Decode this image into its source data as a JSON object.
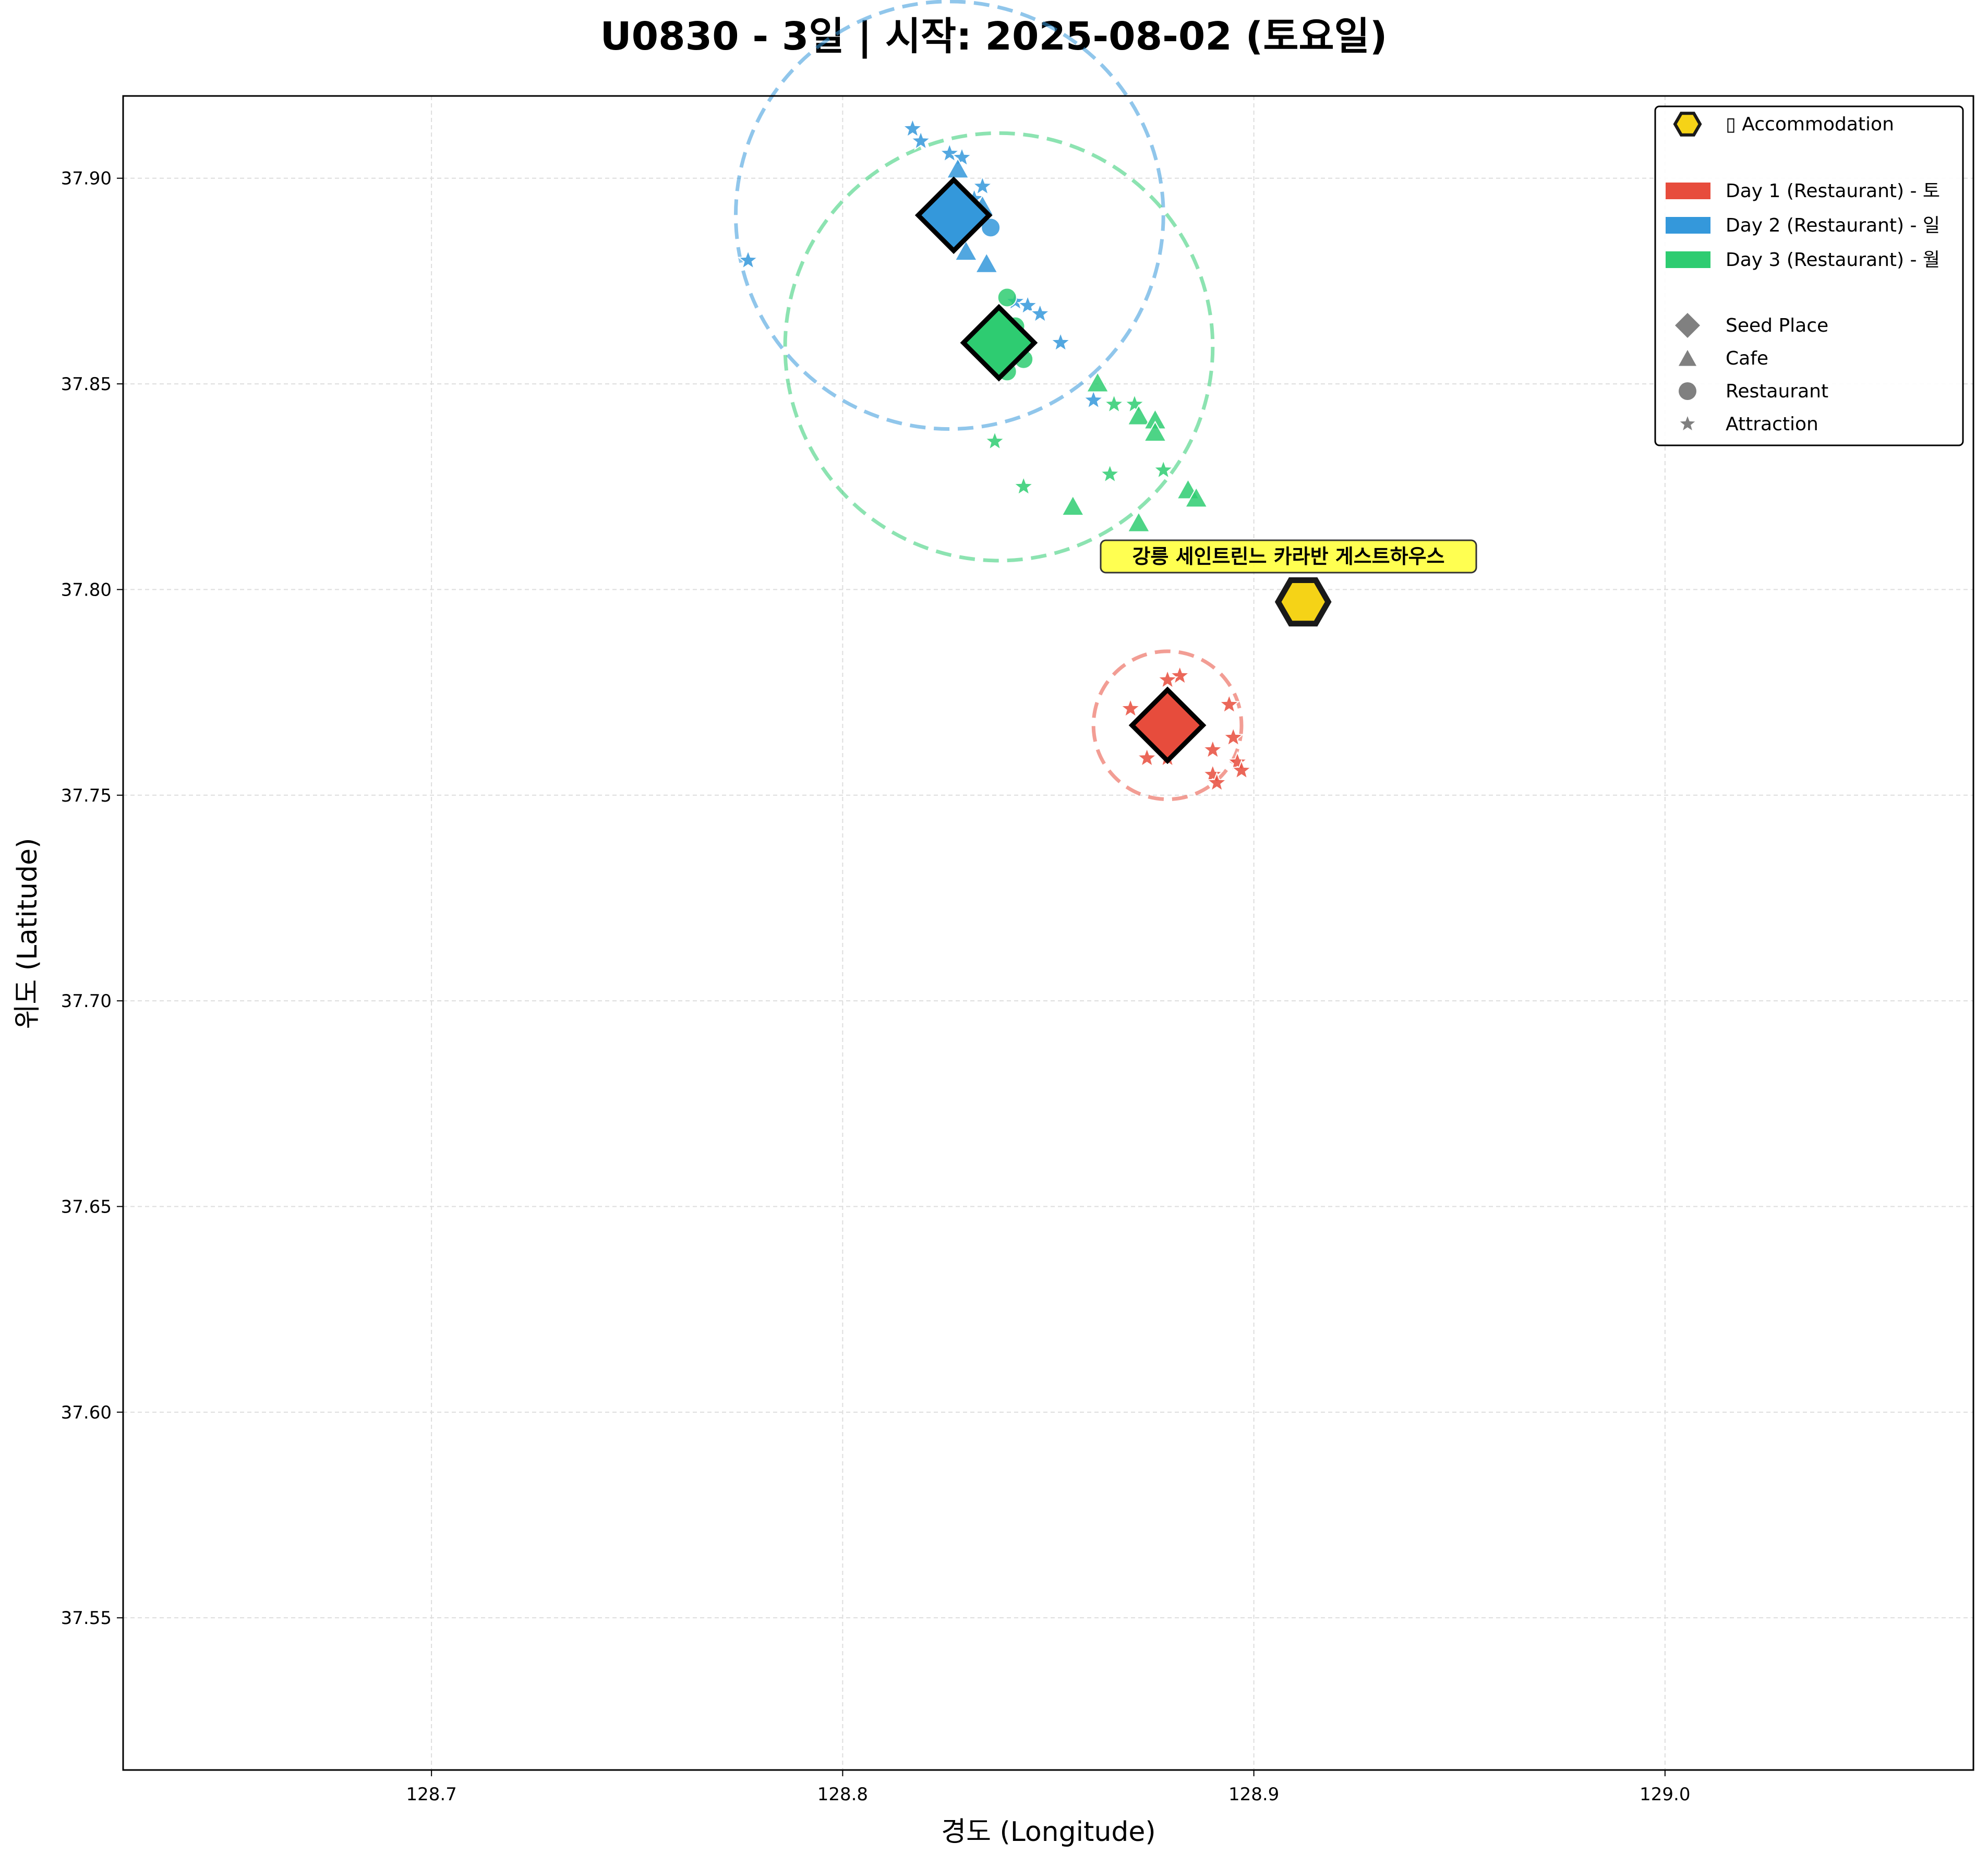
{
  "chart_data": {
    "type": "scatter",
    "title": "U0830 - 3일 | 시작: 2025-08-02 (토요일)",
    "xlabel": "경도 (Longitude)",
    "ylabel": "위도 (Latitude)",
    "xlim": [
      128.625,
      129.075
    ],
    "ylim": [
      37.513,
      37.92
    ],
    "xticks": [
      128.7,
      128.8,
      128.9,
      129.0
    ],
    "xtick_labels": [
      "128.7",
      "128.8",
      "128.9",
      "129.0"
    ],
    "yticks": [
      37.55,
      37.6,
      37.65,
      37.7,
      37.75,
      37.8,
      37.85,
      37.9
    ],
    "ytick_labels": [
      "37.55",
      "37.60",
      "37.65",
      "37.70",
      "37.75",
      "37.80",
      "37.85",
      "37.90"
    ],
    "grid": true,
    "legend_position": "top-right",
    "accommodation": {
      "name": "강릉 세인트린느 카라반 게스트하우스",
      "lon": 128.912,
      "lat": 37.797,
      "legend_label": "▯ Accommodation",
      "color": "#f5d317"
    },
    "legend_type_entries": [
      "Seed Place",
      "Cafe",
      "Restaurant",
      "Attraction"
    ],
    "days": [
      {
        "name": "Day 1 (Restaurant) - 토",
        "color": "#e74c3c",
        "seed": {
          "lon": 128.879,
          "lat": 37.767
        },
        "radius_circle": {
          "center_lon": 128.879,
          "center_lat": 37.767,
          "radius_lon": 0.018
        },
        "places": [
          {
            "type": "attraction",
            "lon": 128.882,
            "lat": 37.779
          },
          {
            "type": "attraction",
            "lon": 128.879,
            "lat": 37.778
          },
          {
            "type": "attraction",
            "lon": 128.87,
            "lat": 37.771
          },
          {
            "type": "attraction",
            "lon": 128.894,
            "lat": 37.772
          },
          {
            "type": "attraction",
            "lon": 128.895,
            "lat": 37.764
          },
          {
            "type": "attraction",
            "lon": 128.89,
            "lat": 37.761
          },
          {
            "type": "attraction",
            "lon": 128.874,
            "lat": 37.759
          },
          {
            "type": "attraction",
            "lon": 128.879,
            "lat": 37.759
          },
          {
            "type": "attraction",
            "lon": 128.896,
            "lat": 37.758
          },
          {
            "type": "attraction",
            "lon": 128.897,
            "lat": 37.756
          },
          {
            "type": "attraction",
            "lon": 128.89,
            "lat": 37.755
          },
          {
            "type": "attraction",
            "lon": 128.891,
            "lat": 37.753
          }
        ]
      },
      {
        "name": "Day 2 (Restaurant) - 일",
        "color": "#3498db",
        "seed": {
          "lon": 128.827,
          "lat": 37.891
        },
        "radius_circle": {
          "center_lon": 128.826,
          "center_lat": 37.891,
          "radius_lon": 0.052
        },
        "places": [
          {
            "type": "attraction",
            "lon": 128.817,
            "lat": 37.912
          },
          {
            "type": "attraction",
            "lon": 128.819,
            "lat": 37.909
          },
          {
            "type": "attraction",
            "lon": 128.826,
            "lat": 37.906
          },
          {
            "type": "attraction",
            "lon": 128.829,
            "lat": 37.905
          },
          {
            "type": "cafe",
            "lon": 128.828,
            "lat": 37.902
          },
          {
            "type": "attraction",
            "lon": 128.834,
            "lat": 37.898
          },
          {
            "type": "attraction",
            "lon": 128.832,
            "lat": 37.895
          },
          {
            "type": "cafe",
            "lon": 128.834,
            "lat": 37.893
          },
          {
            "type": "restaurant",
            "lon": 128.836,
            "lat": 37.888
          },
          {
            "type": "cafe",
            "lon": 128.83,
            "lat": 37.882
          },
          {
            "type": "cafe",
            "lon": 128.835,
            "lat": 37.879
          },
          {
            "type": "attraction",
            "lon": 128.777,
            "lat": 37.88
          },
          {
            "type": "attraction",
            "lon": 128.842,
            "lat": 37.87
          },
          {
            "type": "attraction",
            "lon": 128.845,
            "lat": 37.869
          },
          {
            "type": "attraction",
            "lon": 128.848,
            "lat": 37.867
          },
          {
            "type": "attraction",
            "lon": 128.853,
            "lat": 37.86
          },
          {
            "type": "attraction",
            "lon": 128.861,
            "lat": 37.846
          }
        ]
      },
      {
        "name": "Day 3 (Restaurant) - 월",
        "color": "#2ecc71",
        "seed": {
          "lon": 128.838,
          "lat": 37.86
        },
        "radius_circle": {
          "center_lon": 128.838,
          "center_lat": 37.859,
          "radius_lon": 0.052
        },
        "places": [
          {
            "type": "restaurant",
            "lon": 128.84,
            "lat": 37.871
          },
          {
            "type": "restaurant",
            "lon": 128.842,
            "lat": 37.864
          },
          {
            "type": "restaurant",
            "lon": 128.844,
            "lat": 37.856
          },
          {
            "type": "restaurant",
            "lon": 128.84,
            "lat": 37.853
          },
          {
            "type": "cafe",
            "lon": 128.862,
            "lat": 37.85
          },
          {
            "type": "attraction",
            "lon": 128.866,
            "lat": 37.845
          },
          {
            "type": "attraction",
            "lon": 128.871,
            "lat": 37.845
          },
          {
            "type": "cafe",
            "lon": 128.872,
            "lat": 37.842
          },
          {
            "type": "cafe",
            "lon": 128.876,
            "lat": 37.841
          },
          {
            "type": "cafe",
            "lon": 128.876,
            "lat": 37.838
          },
          {
            "type": "attraction",
            "lon": 128.837,
            "lat": 37.836
          },
          {
            "type": "attraction",
            "lon": 128.878,
            "lat": 37.829
          },
          {
            "type": "attraction",
            "lon": 128.865,
            "lat": 37.828
          },
          {
            "type": "attraction",
            "lon": 128.844,
            "lat": 37.825
          },
          {
            "type": "cafe",
            "lon": 128.884,
            "lat": 37.824
          },
          {
            "type": "cafe",
            "lon": 128.886,
            "lat": 37.822
          },
          {
            "type": "cafe",
            "lon": 128.856,
            "lat": 37.82
          },
          {
            "type": "cafe",
            "lon": 128.872,
            "lat": 37.816
          }
        ]
      }
    ]
  }
}
